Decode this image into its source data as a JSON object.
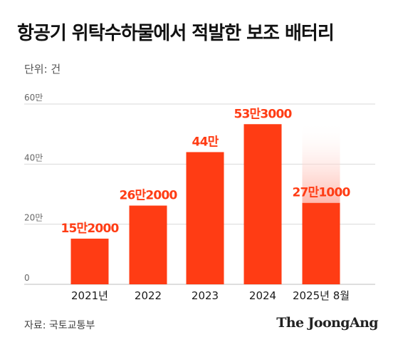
{
  "title": "항공기 위탁수하물에서 적발한 보조 배터리",
  "unit_note": "단위: 건",
  "source": "자료: 국토교통부",
  "brand": "The JoongAng",
  "colors": {
    "bar": "#ff3c14",
    "highlight_fade": "#ffb2a6",
    "grid": "#d9d9d9",
    "text": "#1a1a1a"
  },
  "chart_data": {
    "type": "bar",
    "categories": [
      "2021년",
      "2022",
      "2023",
      "2024",
      "2025년 8월"
    ],
    "values": [
      152000,
      262000,
      440000,
      533000,
      271000
    ],
    "data_labels": [
      "15만2000",
      "26만2000",
      "44만",
      "53만3000",
      "27만1000"
    ],
    "y_ticks": [
      {
        "value": 0,
        "label": "0"
      },
      {
        "value": 200000,
        "label": "20만"
      },
      {
        "value": 400000,
        "label": "40만"
      },
      {
        "value": 600000,
        "label": "60만"
      }
    ],
    "ylim": [
      0,
      600000
    ],
    "highlight_last": true,
    "grid": true
  }
}
